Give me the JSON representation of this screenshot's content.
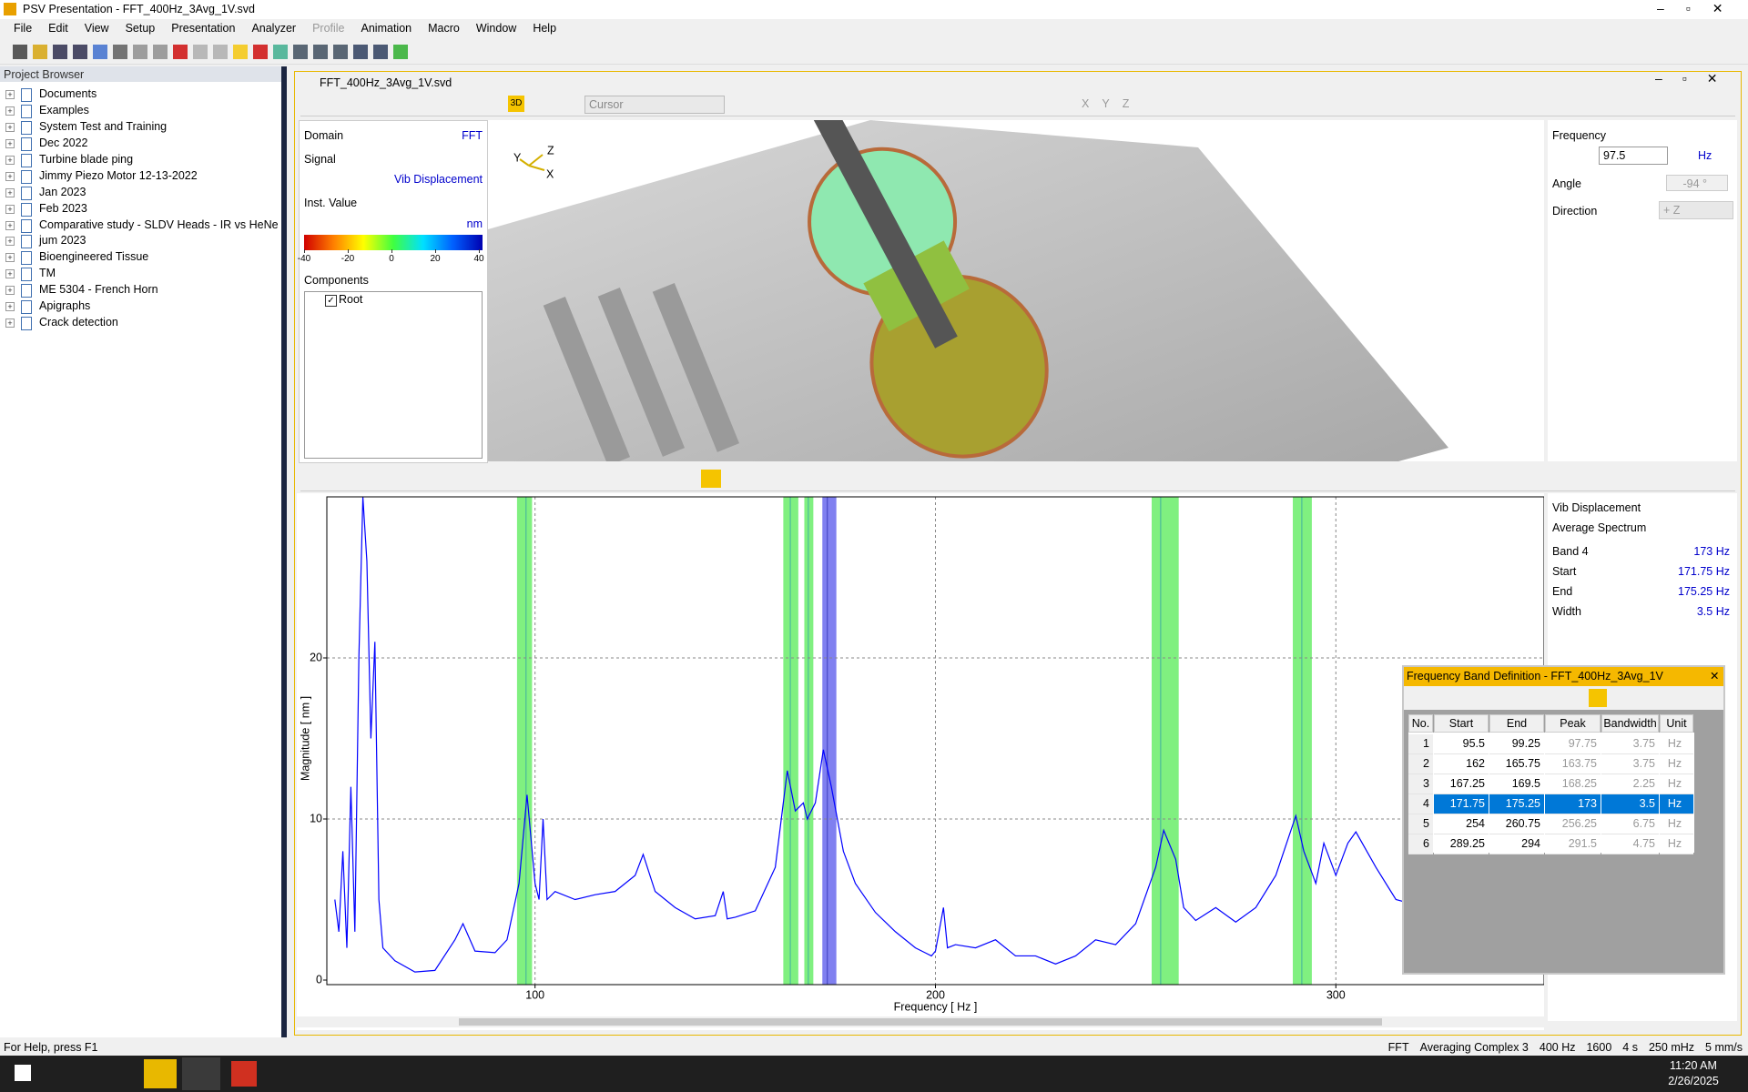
{
  "window": {
    "title": "PSV Presentation - FFT_400Hz_3Avg_1V.svd",
    "menu": [
      "File",
      "Edit",
      "View",
      "Setup",
      "Presentation",
      "Analyzer",
      "Profile",
      "Animation",
      "Macro",
      "Window",
      "Help"
    ],
    "status": "For Help, press F1",
    "status_right": [
      "FFT",
      "Averaging Complex 3",
      "400 Hz",
      "1600",
      "4 s",
      "250 mHz",
      "5 mm/s"
    ]
  },
  "project_browser": {
    "title": "Project Browser",
    "items": [
      "Documents",
      "Examples",
      "System Test and Training",
      "Dec 2022",
      "Turbine blade ping",
      "Jimmy Piezo Motor 12-13-2022",
      "Jan 2023",
      "Feb 2023",
      "Comparative study - SLDV Heads - IR vs HeNe",
      "jum 2023",
      "Bioengineered Tissue",
      "TM",
      "ME 5304 - French Horn",
      "Apigraphs",
      "Crack detection"
    ]
  },
  "document": {
    "title": "FFT_400Hz_3Avg_1V.svd",
    "mode_3d": "3D",
    "cursor_mode": "Cursor",
    "axis_buttons": [
      "X",
      "Y",
      "Z"
    ],
    "triad": [
      "Z",
      "Y",
      "X"
    ]
  },
  "info_panel": {
    "domain_label": "Domain",
    "domain": "FFT",
    "signal_label": "Signal",
    "signal": "Vib Displacement",
    "value_label": "Inst. Value",
    "unit": "nm",
    "colorbar_ticks": [
      -40,
      -20,
      0,
      20,
      40
    ],
    "components_label": "Components",
    "root": "Root"
  },
  "view_panel": {
    "frequency_label": "Frequency",
    "frequency": "97.5",
    "frequency_unit": "Hz",
    "angle_label": "Angle",
    "angle": "-94 °",
    "direction_label": "Direction",
    "direction": "+ Z"
  },
  "spectrum": {
    "x_label": "Frequency [ Hz ]",
    "y_label": "Magnitude [ nm ]",
    "xlim": [
      48,
      352
    ],
    "ylim": [
      0,
      30
    ],
    "xticks": [
      100,
      200,
      300
    ],
    "yticks": [
      0,
      10,
      20
    ],
    "grid": true,
    "color": "#0000ff",
    "x": [
      50,
      51,
      52,
      53,
      54,
      55,
      56,
      57,
      58,
      59,
      60,
      61,
      62,
      65,
      70,
      75,
      80,
      82,
      85,
      90,
      93,
      96,
      98,
      100,
      101,
      102,
      103,
      105,
      110,
      115,
      120,
      125,
      127,
      130,
      135,
      140,
      145,
      147,
      148,
      150,
      155,
      160,
      163,
      165,
      167,
      168,
      170,
      172,
      174,
      177,
      180,
      185,
      190,
      195,
      199,
      200,
      202,
      203,
      205,
      210,
      215,
      220,
      225,
      230,
      235,
      240,
      245,
      250,
      255,
      257,
      260,
      262,
      265,
      270,
      275,
      280,
      285,
      290,
      292,
      295,
      297,
      300,
      303,
      305,
      310,
      315,
      318
    ],
    "values": [
      5,
      3,
      8,
      2,
      12,
      3,
      20,
      30,
      26,
      15,
      21,
      5,
      2,
      1.2,
      0.5,
      0.6,
      2.5,
      3.5,
      1.8,
      1.7,
      2.5,
      6,
      11.5,
      6,
      5,
      10,
      5,
      5.5,
      5,
      5.3,
      5.5,
      6.5,
      7.8,
      5.5,
      4.5,
      3.8,
      4,
      5.5,
      3.8,
      3.9,
      4.3,
      7,
      13,
      10.5,
      11,
      10,
      11,
      14.3,
      12,
      8,
      6,
      4.2,
      3,
      2,
      1.5,
      1.8,
      4.5,
      2,
      2.2,
      2,
      2.5,
      1.5,
      1.5,
      1,
      1.5,
      2.5,
      2.2,
      3.5,
      7,
      9.3,
      7.5,
      4.5,
      3.7,
      4.5,
      3.6,
      4.5,
      6.5,
      10.2,
      8,
      6,
      8.5,
      6.5,
      8.5,
      9.2,
      7,
      5,
      4.8
    ]
  },
  "band_info": {
    "title": "Vib Displacement",
    "subtitle": "Average Spectrum",
    "rows": [
      [
        "Band 4",
        "173 Hz"
      ],
      [
        "Start",
        "171.75 Hz"
      ],
      [
        "End",
        "175.25 Hz"
      ],
      [
        "Width",
        "3.5 Hz"
      ]
    ]
  },
  "band_dialog": {
    "title": "Frequency Band Definition - FFT_400Hz_3Avg_1V",
    "columns": [
      "No.",
      "Start",
      "End",
      "Peak",
      "Bandwidth",
      "Unit"
    ],
    "rows": [
      [
        1,
        95.5,
        99.25,
        97.75,
        3.75,
        "Hz"
      ],
      [
        2,
        162,
        165.75,
        163.75,
        3.75,
        "Hz"
      ],
      [
        3,
        167.25,
        169.5,
        168.25,
        2.25,
        "Hz"
      ],
      [
        4,
        171.75,
        175.25,
        173,
        3.5,
        "Hz"
      ],
      [
        5,
        254,
        260.75,
        256.25,
        6.75,
        "Hz"
      ],
      [
        6,
        289.25,
        294,
        291.5,
        4.75,
        "Hz"
      ]
    ],
    "selected_row": 3
  },
  "taskbar": {
    "time": "11:20 AM",
    "date": "2/26/2025"
  }
}
